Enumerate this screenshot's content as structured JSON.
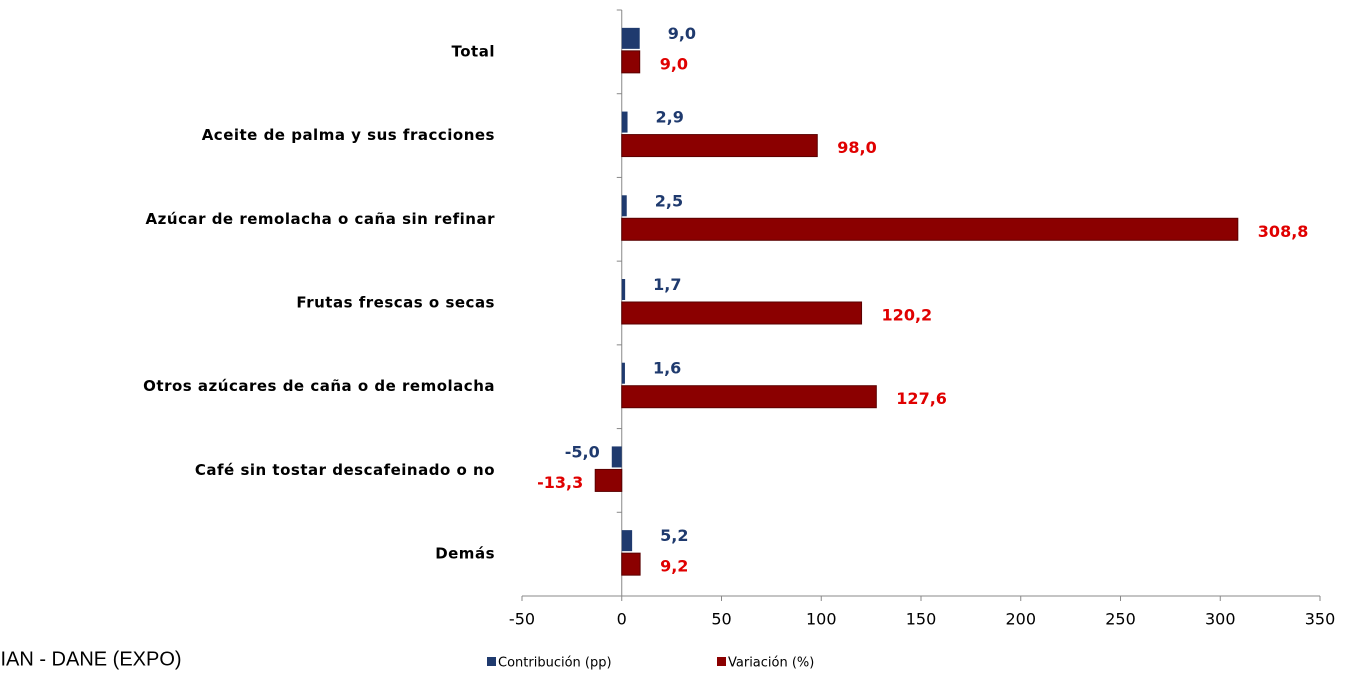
{
  "chart_data": {
    "type": "hbar",
    "categories": [
      "Total",
      "Aceite de palma y sus fracciones",
      "Azúcar de remolacha o caña sin refinar",
      "Frutas frescas o secas",
      "Otros azúcares de caña o de remolacha",
      "Café sin tostar descafeinado o no",
      "Demás"
    ],
    "series": [
      {
        "name": "Contribución (pp)",
        "color": "#1f3a6e",
        "values": [
          9.0,
          2.9,
          2.5,
          1.7,
          1.6,
          -5.0,
          5.2
        ],
        "value_labels": [
          "9,0",
          "2,9",
          "2,5",
          "1,7",
          "1,6",
          "-5,0",
          "5,2"
        ],
        "label_color": "#1f3a6e"
      },
      {
        "name": "Variación (%)",
        "color": "#8b0000",
        "values": [
          9.0,
          98.0,
          308.8,
          120.2,
          127.6,
          -13.3,
          9.2
        ],
        "value_labels": [
          "9,0",
          "98,0",
          "308,8",
          "120,2",
          "127,6",
          "-13,3",
          "9,2"
        ],
        "label_color": "#e00000"
      }
    ],
    "xlim": [
      -50,
      350
    ],
    "xticks": [
      -50,
      0,
      50,
      100,
      150,
      200,
      250,
      300,
      350
    ],
    "source": "DIAN - DANE (EXPO)"
  }
}
